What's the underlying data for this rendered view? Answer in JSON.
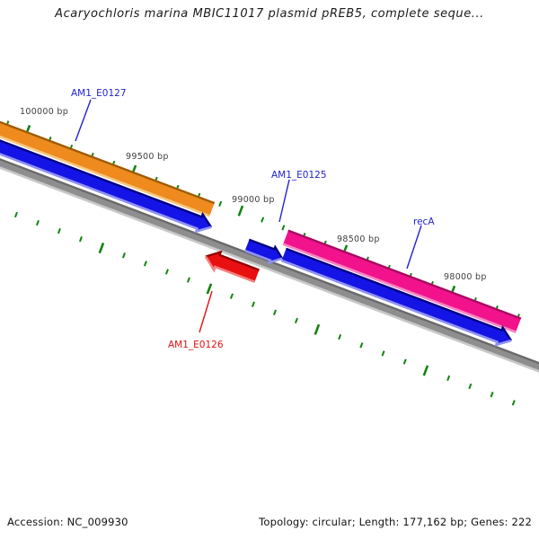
{
  "title": "Acaryochloris marina MBIC11017 plasmid pREB5, complete seque...",
  "footer": {
    "accession": "Accession: NC_009930",
    "summary": "Topology: circular; Length: 177,162 bp; Genes: 222"
  },
  "ruler": {
    "unit": "bp",
    "tick_labels": [
      "100000 bp",
      "99500 bp",
      "99000 bp",
      "98500 bp",
      "98000 bp"
    ]
  },
  "genes": [
    {
      "label": "AM1_E0127",
      "ring": "outer-category",
      "direction": "right",
      "color": "#ee8a1e",
      "label_color": "#2222cc"
    },
    {
      "label": "AM1_E0125",
      "ring": "forward-cds",
      "direction": "right",
      "color": "#1414e6",
      "label_color": "#2222cc"
    },
    {
      "label": "recA",
      "ring": "outer-category",
      "direction": "right",
      "color": "#f2138c",
      "label_color": "#2222cc"
    },
    {
      "label": "AM1_E0126",
      "ring": "reverse-cds",
      "direction": "left",
      "color": "#e81010",
      "label_color": "#e01010"
    }
  ],
  "colors": {
    "forward_cds": "#1414e6",
    "reverse_cds": "#e81010",
    "category_orange": "#ee8a1e",
    "category_pink": "#f2138c",
    "backbone": "#8e8e8e",
    "tick_green": "#108410",
    "label_blue": "#2222cc",
    "label_red": "#e01010",
    "ruler_text": "#3f3f3f"
  }
}
